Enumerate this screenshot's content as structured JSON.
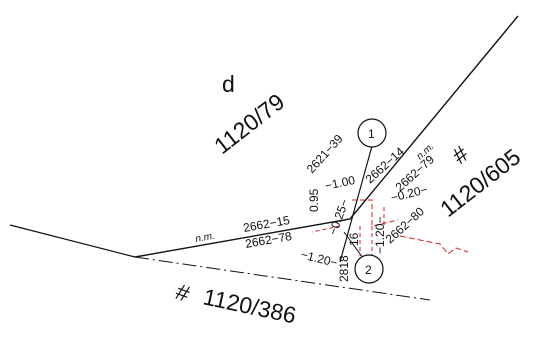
{
  "parcels": {
    "top_letter": "d",
    "top_number": "1120/79",
    "right": "1120/605",
    "bottom": "1120/386",
    "hash_symbol": "#"
  },
  "points": {
    "p1": "1",
    "p2": "2"
  },
  "codes": {
    "c2621_39": "2621−39",
    "c2662_14": "2662−14",
    "c2662_79": "2662−79",
    "c2662_15": "2662−15",
    "c2662_78": "2662−78",
    "c2662_80": "2662−80",
    "c2818": "2818"
  },
  "measures": {
    "m095": "0.95",
    "m100": "−1.00",
    "m020": "−0.20−",
    "m025": "−0.25−",
    "m120a": "−1.20−",
    "m120b": "−1.20−",
    "m16": "16"
  },
  "notes": {
    "nm_left": "n.m.",
    "nm_right": "n.m."
  },
  "colors": {
    "ink": "#111111",
    "red": "#d62020"
  }
}
